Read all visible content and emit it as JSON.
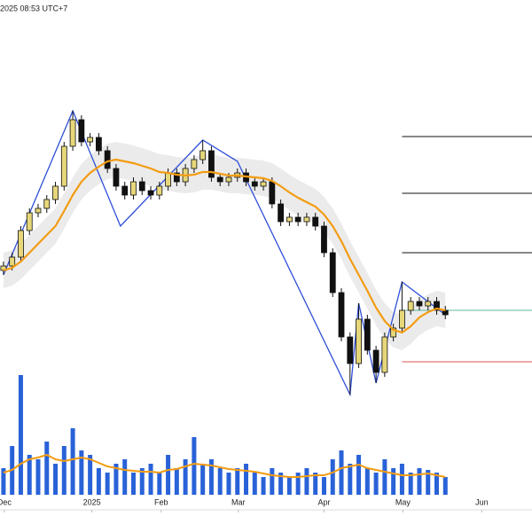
{
  "chart_data": {
    "type": "candlestick",
    "title": "2025 08:53 UTC+7",
    "xlim": [
      -0.4,
      61
    ],
    "ylim": [
      0,
      500
    ],
    "vlim": [
      0,
      150
    ],
    "xticks": [
      {
        "value": 0.1,
        "label": "Dec"
      },
      {
        "value": 10.2,
        "label": "2025"
      },
      {
        "value": 18.2,
        "label": "Feb"
      },
      {
        "value": 27.1,
        "label": "Mar"
      },
      {
        "value": 37,
        "label": "Apr"
      },
      {
        "value": 46.1,
        "label": "May"
      },
      {
        "value": 55.2,
        "label": "Jun"
      }
    ],
    "up_color": "#e6d77a",
    "down_color": "#111111",
    "open": [
      195,
      200,
      210,
      240,
      260,
      265,
      275,
      290,
      335,
      365,
      340,
      345,
      330,
      310,
      290,
      280,
      295,
      285,
      280,
      290,
      305,
      295,
      310,
      320,
      330,
      300,
      295,
      300,
      305,
      295,
      290,
      295,
      270,
      250,
      255,
      250,
      255,
      245,
      215,
      170,
      120,
      90,
      140,
      105,
      80,
      120,
      130,
      150,
      160,
      155,
      160,
      150
    ],
    "high": [
      205,
      215,
      245,
      265,
      270,
      280,
      295,
      340,
      375,
      370,
      350,
      350,
      335,
      315,
      295,
      300,
      300,
      290,
      295,
      310,
      310,
      315,
      325,
      342,
      335,
      305,
      305,
      310,
      310,
      300,
      300,
      300,
      275,
      260,
      260,
      260,
      260,
      250,
      220,
      175,
      125,
      158,
      145,
      110,
      125,
      135,
      182,
      165,
      165,
      165,
      165,
      155
    ],
    "low": [
      190,
      195,
      205,
      235,
      255,
      260,
      270,
      285,
      330,
      335,
      335,
      325,
      305,
      285,
      275,
      275,
      280,
      275,
      275,
      285,
      290,
      290,
      305,
      315,
      295,
      290,
      290,
      295,
      290,
      285,
      285,
      265,
      245,
      245,
      245,
      245,
      240,
      210,
      165,
      115,
      55,
      85,
      100,
      68,
      75,
      115,
      125,
      145,
      150,
      150,
      145,
      140
    ],
    "close": [
      200,
      210,
      240,
      260,
      265,
      275,
      290,
      335,
      365,
      340,
      345,
      330,
      310,
      290,
      280,
      295,
      285,
      280,
      290,
      305,
      295,
      310,
      320,
      330,
      300,
      295,
      300,
      305,
      295,
      290,
      295,
      270,
      250,
      255,
      250,
      255,
      245,
      215,
      170,
      120,
      90,
      140,
      105,
      80,
      120,
      130,
      150,
      160,
      155,
      160,
      150,
      145
    ],
    "ma": {
      "color": "#f39c12",
      "values": [
        195,
        198,
        205,
        215,
        225,
        235,
        245,
        262,
        280,
        295,
        305,
        312,
        318,
        320,
        318,
        316,
        313,
        310,
        306,
        305,
        303,
        302,
        303,
        306,
        306,
        304,
        302,
        302,
        301,
        300,
        299,
        296,
        290,
        283,
        277,
        272,
        267,
        258,
        245,
        228,
        208,
        190,
        172,
        153,
        138,
        128,
        125,
        132,
        142,
        148,
        152,
        150
      ]
    },
    "band": {
      "color": "#e6e6e6",
      "upper": [
        215,
        218,
        225,
        235,
        245,
        255,
        265,
        282,
        300,
        315,
        325,
        332,
        338,
        340,
        338,
        336,
        333,
        330,
        326,
        325,
        323,
        322,
        323,
        326,
        326,
        324,
        322,
        322,
        321,
        320,
        319,
        316,
        310,
        303,
        297,
        292,
        287,
        278,
        265,
        248,
        228,
        210,
        192,
        173,
        158,
        148,
        145,
        152,
        162,
        168,
        172,
        170
      ],
      "lower": [
        175,
        178,
        185,
        195,
        205,
        215,
        225,
        242,
        260,
        275,
        285,
        292,
        298,
        300,
        298,
        296,
        293,
        290,
        286,
        285,
        283,
        282,
        283,
        286,
        286,
        284,
        282,
        282,
        281,
        280,
        279,
        276,
        270,
        263,
        257,
        252,
        247,
        238,
        225,
        208,
        188,
        170,
        152,
        133,
        118,
        108,
        105,
        112,
        122,
        128,
        132,
        130
      ]
    },
    "zigzag": {
      "color": "#2f4fd8",
      "x": [
        0,
        8,
        13.5,
        23,
        27,
        40,
        41,
        43,
        46,
        51
      ],
      "values": [
        190,
        375,
        245,
        342,
        318,
        55,
        158,
        68,
        182,
        145
      ]
    },
    "levels": [
      {
        "value": 346,
        "color": "#111111"
      },
      {
        "value": 282,
        "color": "#111111"
      },
      {
        "value": 215,
        "color": "#111111"
      },
      {
        "value": 150,
        "color": "#5fb8a0"
      },
      {
        "value": 92,
        "color": "#d9534f"
      }
    ],
    "levels_start": 46,
    "volume": {
      "color": "#2962d8",
      "values": [
        30,
        55,
        135,
        45,
        40,
        60,
        35,
        55,
        75,
        50,
        45,
        30,
        25,
        35,
        40,
        25,
        30,
        35,
        25,
        45,
        30,
        40,
        65,
        35,
        40,
        30,
        25,
        30,
        35,
        25,
        20,
        30,
        25,
        20,
        25,
        30,
        25,
        20,
        40,
        50,
        35,
        45,
        30,
        25,
        40,
        30,
        35,
        25,
        30,
        28,
        25,
        20
      ]
    },
    "volume_ma": {
      "color": "#f39c12",
      "values": [
        25,
        28,
        35,
        40,
        42,
        45,
        40,
        38,
        40,
        42,
        40,
        36,
        32,
        30,
        28,
        27,
        26,
        26,
        25,
        28,
        29,
        32,
        35,
        34,
        33,
        31,
        29,
        28,
        27,
        26,
        24,
        22,
        21,
        20,
        20,
        21,
        22,
        22,
        25,
        30,
        32,
        34,
        30,
        28,
        26,
        24,
        22,
        22,
        23,
        24,
        22,
        20
      ]
    }
  }
}
